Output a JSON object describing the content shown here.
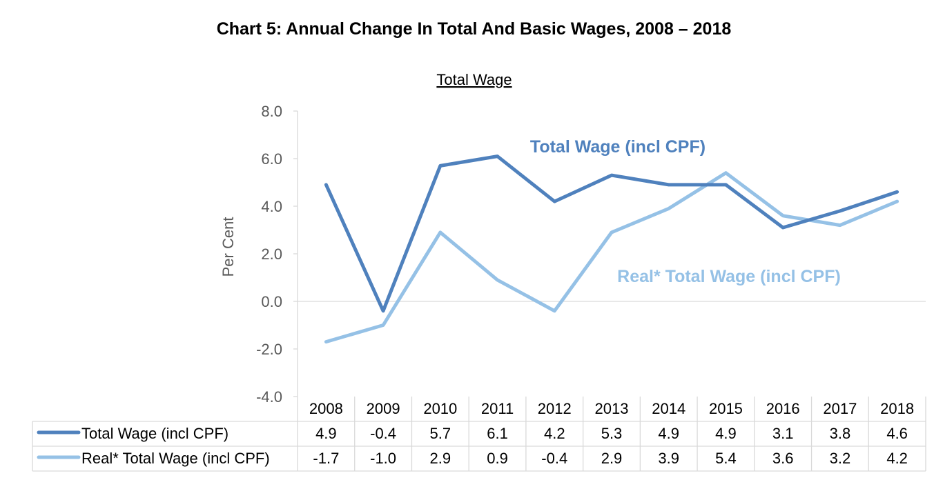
{
  "chart_title": "Chart 5: Annual Change In Total And Basic Wages, 2008 – 2018",
  "chart_data": {
    "type": "line",
    "title": "Total Wage",
    "xlabel": "",
    "ylabel": "Per Cent",
    "categories": [
      "2008",
      "2009",
      "2010",
      "2011",
      "2012",
      "2013",
      "2014",
      "2015",
      "2016",
      "2017",
      "2018"
    ],
    "ylim": [
      -4.0,
      8.0
    ],
    "yticks": [
      "8.0",
      "6.0",
      "4.0",
      "2.0",
      "0.0",
      "-2.0",
      "-4.0"
    ],
    "grid": "zero line only",
    "series": [
      {
        "name": "Total Wage (incl CPF)",
        "inline_label": "Total Wage (incl CPF)",
        "color": "#4f81bd",
        "values": [
          4.9,
          -0.4,
          5.7,
          6.1,
          4.2,
          5.3,
          4.9,
          4.9,
          3.1,
          3.8,
          4.6
        ],
        "table_values": [
          "4.9",
          "-0.4",
          "5.7",
          "6.1",
          "4.2",
          "5.3",
          "4.9",
          "4.9",
          "3.1",
          "3.8",
          "4.6"
        ]
      },
      {
        "name": "Real* Total Wage (incl CPF)",
        "inline_label": "Real* Total Wage (incl CPF)",
        "color": "#95c1e6",
        "values": [
          -1.7,
          -1.0,
          2.9,
          0.9,
          -0.4,
          2.9,
          3.9,
          5.4,
          3.6,
          3.2,
          4.2
        ],
        "table_values": [
          "-1.7",
          "-1.0",
          "2.9",
          "0.9",
          "-0.4",
          "2.9",
          "3.9",
          "5.4",
          "3.6",
          "3.2",
          "4.2"
        ]
      }
    ],
    "data_table": true
  }
}
